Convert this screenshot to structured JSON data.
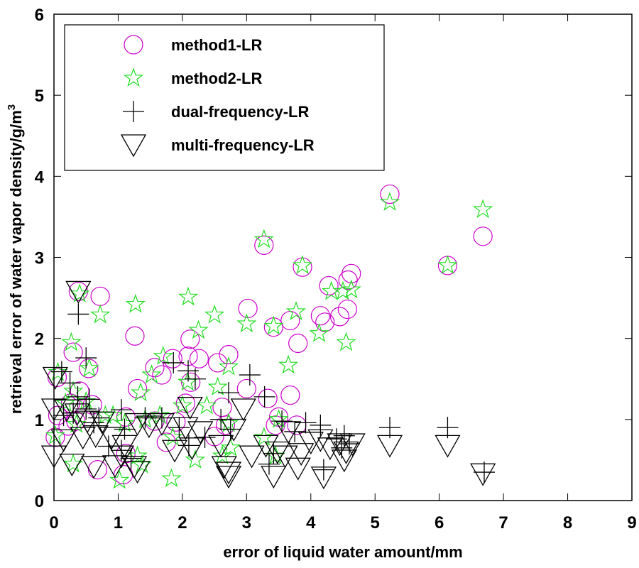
{
  "chart_data": {
    "type": "scatter",
    "title": "",
    "xlabel": "error of liquid water amount/mm",
    "ylabel": "retrieval error of water vapor density/g/m",
    "ylabel_superscript": "3",
    "xlim": [
      0,
      9
    ],
    "ylim": [
      0,
      6
    ],
    "xticks": [
      "0",
      "1",
      "2",
      "3",
      "4",
      "5",
      "6",
      "7",
      "8",
      "9"
    ],
    "yticks": [
      "0",
      "1",
      "2",
      "3",
      "4",
      "5",
      "6"
    ],
    "grid": false,
    "legend_position": "top-left",
    "series": [
      {
        "name": "method1-LR",
        "marker": "circle",
        "color": "#cc00cc",
        "points": [
          [
            5.23,
            3.78
          ],
          [
            6.68,
            3.26
          ],
          [
            3.27,
            3.15
          ],
          [
            3.87,
            2.88
          ],
          [
            6.13,
            2.9
          ],
          [
            4.63,
            2.8
          ],
          [
            4.58,
            2.72
          ],
          [
            4.28,
            2.65
          ],
          [
            0.38,
            2.58
          ],
          [
            0.72,
            2.52
          ],
          [
            3.02,
            2.37
          ],
          [
            4.57,
            2.36
          ],
          [
            4.45,
            2.27
          ],
          [
            4.15,
            2.28
          ],
          [
            4.22,
            2.2
          ],
          [
            3.68,
            2.22
          ],
          [
            3.42,
            2.14
          ],
          [
            1.26,
            2.03
          ],
          [
            3.8,
            1.94
          ],
          [
            2.12,
            1.99
          ],
          [
            0.3,
            1.83
          ],
          [
            0.54,
            1.63
          ],
          [
            2.09,
            1.78
          ],
          [
            1.85,
            1.75
          ],
          [
            2.26,
            1.75
          ],
          [
            2.72,
            1.8
          ],
          [
            2.55,
            1.7
          ],
          [
            1.68,
            1.55
          ],
          [
            1.57,
            1.64
          ],
          [
            2.13,
            1.46
          ],
          [
            3.0,
            1.38
          ],
          [
            3.33,
            1.26
          ],
          [
            3.68,
            1.3
          ],
          [
            1.3,
            1.38
          ],
          [
            0.05,
            1.52
          ],
          [
            0.4,
            1.35
          ],
          [
            0.26,
            1.2
          ],
          [
            0.06,
            1.05
          ],
          [
            0.34,
            0.98
          ],
          [
            0.6,
            1.18
          ],
          [
            1.12,
            1.03
          ],
          [
            1.57,
            0.98
          ],
          [
            1.9,
            0.97
          ],
          [
            2.67,
            0.93
          ],
          [
            2.62,
            1.15
          ],
          [
            2.05,
            1.2
          ],
          [
            3.5,
            1.03
          ],
          [
            3.78,
            0.93
          ],
          [
            0.02,
            0.78
          ],
          [
            0.22,
            0.92
          ],
          [
            1.12,
            0.58
          ],
          [
            0.68,
            0.38
          ],
          [
            1.75,
            0.72
          ],
          [
            1.08,
            0.32
          ],
          [
            2.5,
            0.79
          ],
          [
            3.45,
            0.93
          ]
        ]
      },
      {
        "name": "method2-LR",
        "marker": "star",
        "color": "#22dd22",
        "points": [
          [
            5.23,
            3.68
          ],
          [
            6.68,
            3.59
          ],
          [
            3.27,
            3.22
          ],
          [
            3.87,
            2.9
          ],
          [
            6.13,
            2.9
          ],
          [
            4.63,
            2.6
          ],
          [
            4.5,
            2.58
          ],
          [
            4.32,
            2.58
          ],
          [
            0.4,
            2.55
          ],
          [
            2.09,
            2.51
          ],
          [
            1.27,
            2.42
          ],
          [
            0.72,
            2.29
          ],
          [
            2.5,
            2.29
          ],
          [
            2.25,
            2.1
          ],
          [
            3.77,
            2.33
          ],
          [
            4.13,
            2.06
          ],
          [
            4.55,
            1.95
          ],
          [
            3.42,
            2.15
          ],
          [
            3.0,
            2.18
          ],
          [
            3.65,
            1.67
          ],
          [
            0.27,
            1.95
          ],
          [
            0.55,
            1.63
          ],
          [
            1.7,
            1.78
          ],
          [
            2.72,
            1.65
          ],
          [
            1.52,
            1.55
          ],
          [
            2.55,
            1.4
          ],
          [
            2.08,
            1.46
          ],
          [
            1.35,
            1.33
          ],
          [
            0.06,
            1.58
          ],
          [
            0.3,
            1.35
          ],
          [
            0.18,
            1.2
          ],
          [
            0.5,
            1.22
          ],
          [
            0.92,
            1.05
          ],
          [
            1.65,
            1.05
          ],
          [
            2.0,
            1.17
          ],
          [
            1.1,
            0.95
          ],
          [
            1.42,
            1.0
          ],
          [
            1.85,
            0.78
          ],
          [
            2.38,
            1.17
          ],
          [
            2.72,
            0.95
          ],
          [
            3.5,
            1.0
          ],
          [
            3.27,
            0.78
          ],
          [
            0.02,
            0.8
          ],
          [
            0.35,
            0.94
          ],
          [
            0.8,
            1.05
          ],
          [
            1.3,
            0.55
          ],
          [
            2.75,
            0.65
          ],
          [
            2.2,
            0.5
          ],
          [
            0.3,
            0.45
          ],
          [
            1.02,
            0.25
          ],
          [
            1.83,
            0.27
          ],
          [
            2.62,
            0.55
          ],
          [
            1.37,
            0.44
          ],
          [
            3.45,
            0.55
          ]
        ]
      },
      {
        "name": "dual-frequency-LR",
        "marker": "plus",
        "color": "#000000",
        "points": [
          [
            0.38,
            2.3
          ],
          [
            0.5,
            1.76
          ],
          [
            0.12,
            1.59
          ],
          [
            0.25,
            1.45
          ],
          [
            0.37,
            1.28
          ],
          [
            0.55,
            1.25
          ],
          [
            0.5,
            1.13
          ],
          [
            0.3,
            1.08
          ],
          [
            0.15,
            1.05
          ],
          [
            0.7,
            1.02
          ],
          [
            0.62,
            0.96
          ],
          [
            1.05,
            1.12
          ],
          [
            1.1,
            0.88
          ],
          [
            1.42,
            1.02
          ],
          [
            1.68,
            1.02
          ],
          [
            1.95,
            0.9
          ],
          [
            1.86,
            1.7
          ],
          [
            2.09,
            1.6
          ],
          [
            2.2,
            1.5
          ],
          [
            2.72,
            1.33
          ],
          [
            3.05,
            1.55
          ],
          [
            3.28,
            1.28
          ],
          [
            2.1,
            0.68
          ],
          [
            2.35,
            0.78
          ],
          [
            2.6,
            1.0
          ],
          [
            2.75,
            0.88
          ],
          [
            3.42,
            0.58
          ],
          [
            3.55,
            0.98
          ],
          [
            3.75,
            0.85
          ],
          [
            3.92,
            0.96
          ],
          [
            4.15,
            0.93
          ],
          [
            4.2,
            0.38
          ],
          [
            4.4,
            0.76
          ],
          [
            4.52,
            0.8
          ],
          [
            4.6,
            0.7
          ],
          [
            4.48,
            0.65
          ],
          [
            5.23,
            0.9
          ],
          [
            6.13,
            0.9
          ],
          [
            6.7,
            0.35
          ],
          [
            3.35,
            0.45
          ],
          [
            1.2,
            0.52
          ],
          [
            0.85,
            0.67
          ],
          [
            1.05,
            0.62
          ]
        ]
      },
      {
        "name": "multi-frequency-LR",
        "marker": "triangle-down",
        "color": "#000000",
        "points": [
          [
            0.38,
            2.58
          ],
          [
            0.02,
            1.52
          ],
          [
            0.0,
            1.13
          ],
          [
            0.2,
            1.12
          ],
          [
            0.36,
            1.07
          ],
          [
            0.52,
            0.98
          ],
          [
            0.75,
            0.97
          ],
          [
            1.3,
            0.95
          ],
          [
            1.48,
            0.92
          ],
          [
            1.68,
            0.95
          ],
          [
            0.65,
            0.8
          ],
          [
            0.15,
            0.75
          ],
          [
            0.45,
            0.78
          ],
          [
            0.9,
            0.78
          ],
          [
            1.1,
            0.68
          ],
          [
            1.05,
            0.55
          ],
          [
            0.0,
            0.55
          ],
          [
            0.28,
            0.45
          ],
          [
            0.62,
            0.42
          ],
          [
            0.95,
            0.43
          ],
          [
            1.25,
            0.42
          ],
          [
            1.3,
            0.36
          ],
          [
            2.12,
            1.15
          ],
          [
            2.05,
            0.9
          ],
          [
            2.28,
            0.85
          ],
          [
            2.15,
            0.65
          ],
          [
            1.88,
            0.62
          ],
          [
            2.6,
            0.68
          ],
          [
            2.65,
            0.42
          ],
          [
            2.72,
            0.3
          ],
          [
            2.72,
            0.35
          ],
          [
            2.95,
            1.13
          ],
          [
            2.8,
            0.88
          ],
          [
            3.08,
            0.55
          ],
          [
            3.3,
            0.68
          ],
          [
            3.65,
            0.85
          ],
          [
            3.48,
            0.6
          ],
          [
            3.42,
            0.3
          ],
          [
            3.6,
            0.55
          ],
          [
            3.85,
            0.58
          ],
          [
            3.8,
            0.4
          ],
          [
            4.0,
            0.72
          ],
          [
            4.2,
            0.29
          ],
          [
            4.3,
            0.65
          ],
          [
            4.45,
            0.7
          ],
          [
            4.55,
            0.6
          ],
          [
            4.65,
            0.7
          ],
          [
            4.52,
            0.5
          ],
          [
            5.23,
            0.68
          ],
          [
            6.13,
            0.68
          ],
          [
            6.68,
            0.33
          ],
          [
            4.15,
            0.75
          ]
        ]
      }
    ]
  }
}
